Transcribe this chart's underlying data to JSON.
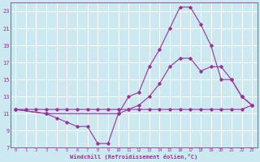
{
  "xlabel": "Windchill (Refroidissement éolien,°C)",
  "bg_color": "#cce8f0",
  "line_color": "#993399",
  "grid_color": "#ffffff",
  "xlim": [
    -0.5,
    23.5
  ],
  "ylim": [
    7,
    24
  ],
  "xticks": [
    0,
    1,
    2,
    3,
    4,
    5,
    6,
    7,
    8,
    9,
    10,
    11,
    12,
    13,
    14,
    15,
    16,
    17,
    18,
    19,
    20,
    21,
    22,
    23
  ],
  "yticks": [
    7,
    9,
    11,
    13,
    15,
    17,
    19,
    21,
    23
  ],
  "series": [
    {
      "x": [
        0,
        1,
        2,
        3,
        4,
        5,
        6,
        7,
        8,
        9,
        10,
        11,
        12,
        13,
        14,
        15,
        16,
        17,
        18,
        19,
        20,
        21,
        22,
        23
      ],
      "y": [
        11.5,
        11.5,
        11.5,
        11.5,
        11.5,
        11.5,
        11.5,
        11.5,
        11.5,
        11.5,
        11.5,
        11.5,
        11.5,
        11.5,
        11.5,
        11.5,
        11.5,
        11.5,
        11.5,
        11.5,
        11.5,
        11.5,
        11.5,
        12.0
      ]
    },
    {
      "x": [
        0,
        3,
        4,
        5,
        6,
        7,
        8,
        9,
        10,
        11,
        12,
        13,
        14,
        15,
        16,
        17,
        18,
        19,
        20,
        21,
        22,
        23
      ],
      "y": [
        11.5,
        11.0,
        10.5,
        10.0,
        9.5,
        9.5,
        7.5,
        7.5,
        11.0,
        13.0,
        13.5,
        16.5,
        18.5,
        21.0,
        23.5,
        23.5,
        21.5,
        19.0,
        15.0,
        15.0,
        13.0,
        12.0
      ]
    },
    {
      "x": [
        0,
        3,
        10,
        11,
        12,
        13,
        14,
        15,
        16,
        17,
        18,
        19,
        20,
        21,
        22,
        23
      ],
      "y": [
        11.5,
        11.0,
        11.0,
        11.5,
        12.0,
        13.0,
        14.5,
        16.5,
        17.5,
        17.5,
        16.0,
        16.5,
        16.5,
        15.0,
        13.0,
        12.0
      ]
    }
  ]
}
